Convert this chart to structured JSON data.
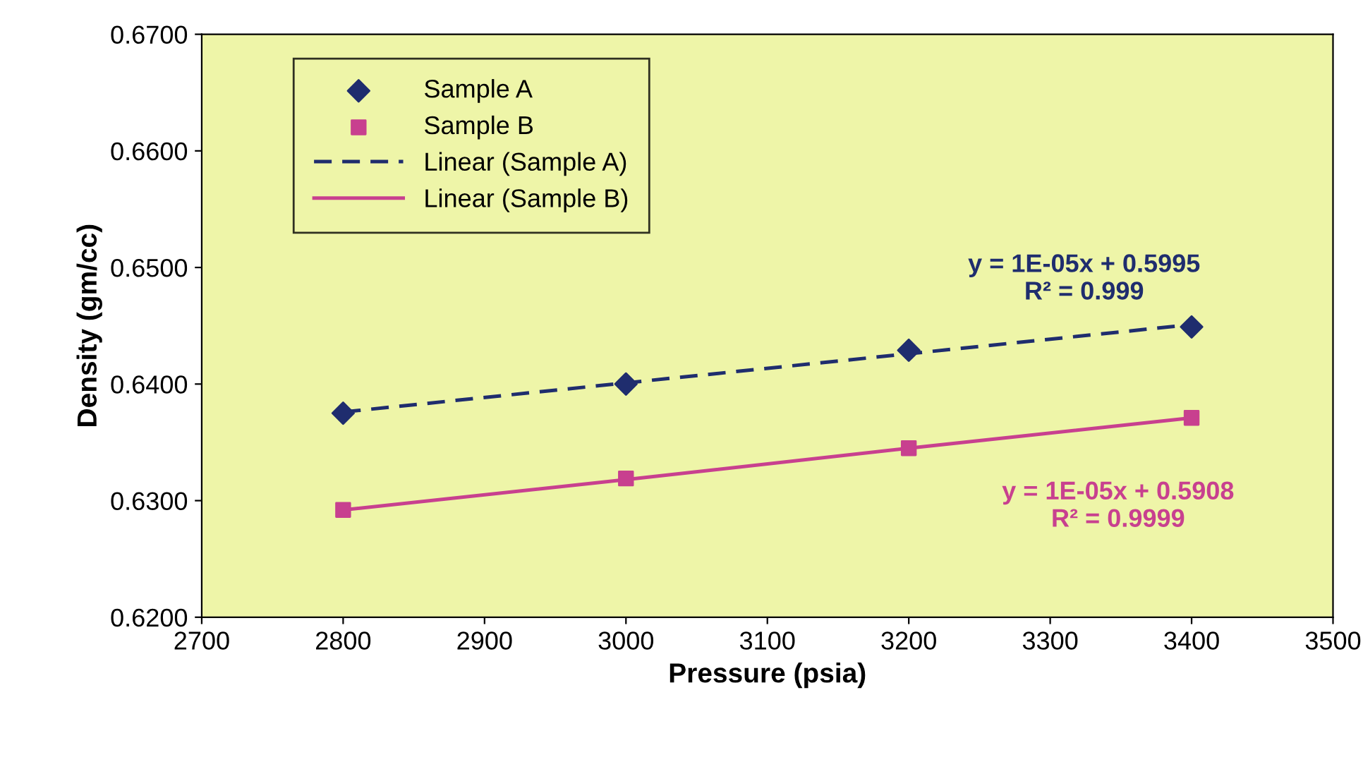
{
  "chart_data": {
    "type": "scatter",
    "xlabel": "Pressure (psia)",
    "ylabel": "Density (gm/cc)",
    "xlim": [
      2700,
      3500
    ],
    "xticks": [
      2700,
      2800,
      2900,
      3000,
      3100,
      3200,
      3300,
      3400,
      3500
    ],
    "ylim": [
      0.62,
      0.67
    ],
    "yticks": [
      {
        "value": 0.62,
        "label": "0.6200"
      },
      {
        "value": 0.63,
        "label": "0.6300"
      },
      {
        "value": 0.64,
        "label": "0.6400"
      },
      {
        "value": 0.65,
        "label": "0.6500"
      },
      {
        "value": 0.66,
        "label": "0.6600"
      },
      {
        "value": 0.67,
        "label": "0.6700"
      }
    ],
    "x": [
      2800,
      3000,
      3200,
      3400
    ],
    "series": [
      {
        "name": "Sample A",
        "marker": "diamond",
        "color": "#1f2d6e",
        "values": [
          0.6375,
          0.64,
          0.6429,
          0.6449
        ]
      },
      {
        "name": "Sample B",
        "marker": "square",
        "color": "#c8408f",
        "values": [
          0.6292,
          0.6319,
          0.6345,
          0.6371
        ]
      },
      {
        "name": "Linear (Sample A)",
        "type": "line",
        "line_style": "dashed",
        "color": "#1f2d6e",
        "values": [
          0.6376,
          0.6401,
          0.6426,
          0.6451
        ]
      },
      {
        "name": "Linear (Sample B)",
        "type": "line",
        "line_style": "solid",
        "color": "#c8408f",
        "values": [
          0.6292,
          0.6318,
          0.6345,
          0.6371
        ]
      }
    ],
    "annotations": [
      "y = 1E-05x + 0.5995\nR² = 0.999",
      "y = 1E-05x + 0.5908\nR² = 0.9999"
    ],
    "legend": "top left",
    "grid": false
  }
}
